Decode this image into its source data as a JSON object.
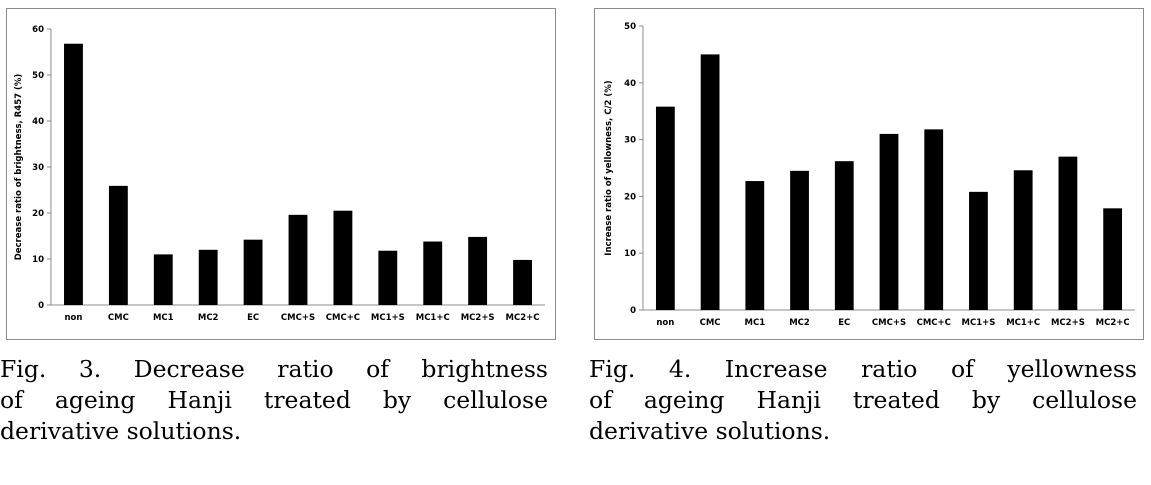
{
  "chart_data": [
    {
      "type": "bar",
      "title": "",
      "xlabel": "",
      "ylabel": "Decrease ratio of brightness, R457 (%)",
      "ylim": [
        0,
        60
      ],
      "yticks": [
        0,
        10,
        20,
        30,
        40,
        50,
        60
      ],
      "categories": [
        "non",
        "CMC",
        "MC1",
        "MC2",
        "EC",
        "CMC+S",
        "CMC+C",
        "MC1+S",
        "MC1+C",
        "MC2+S",
        "MC2+C"
      ],
      "values": [
        56.8,
        25.9,
        11.0,
        12.0,
        14.2,
        19.6,
        20.5,
        11.8,
        13.8,
        14.8,
        9.8
      ],
      "bar_color": "#000000",
      "grid": false,
      "legend": "none"
    },
    {
      "type": "bar",
      "title": "",
      "xlabel": "",
      "ylabel": "Increase ratio of yellowness, C/2 (%)",
      "ylim": [
        0,
        50
      ],
      "yticks": [
        0,
        10,
        20,
        30,
        40,
        50
      ],
      "categories": [
        "non",
        "CMC",
        "MC1",
        "MC2",
        "EC",
        "CMC+S",
        "CMC+C",
        "MC1+S",
        "MC1+C",
        "MC2+S",
        "MC2+C"
      ],
      "values": [
        35.8,
        45.0,
        22.7,
        24.5,
        26.2,
        31.0,
        31.8,
        20.8,
        24.6,
        27.0,
        17.9
      ],
      "bar_color": "#000000",
      "grid": false,
      "legend": "none"
    }
  ],
  "captions": [
    {
      "lines": [
        "Fig. 3. Decrease ratio of brightness",
        "of ageing Hanji treated by cellulose",
        "derivative solutions."
      ]
    },
    {
      "lines": [
        "Fig. 4. Increase ratio of yellowness",
        "of ageing Hanji treated by cellulose",
        "derivative solutions."
      ]
    }
  ]
}
